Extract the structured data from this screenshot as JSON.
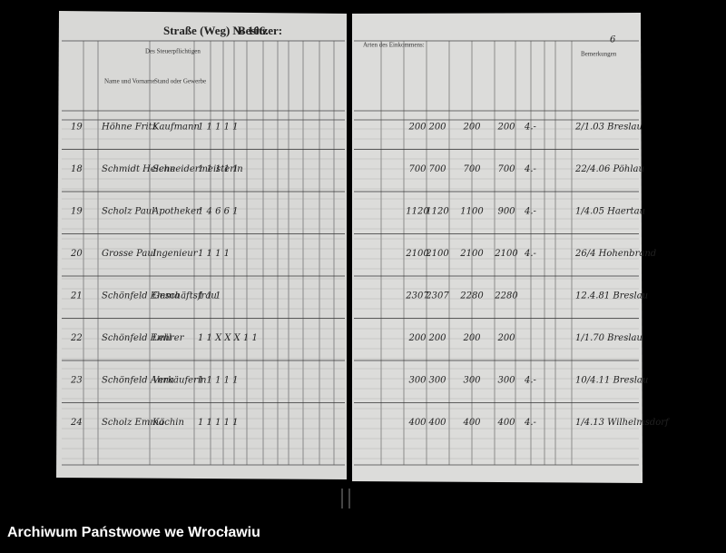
{
  "header": {
    "street": "Straße (Weg) № 106.",
    "owner": "Besitzer:",
    "left_heading": "Des Steuerpflichtigen",
    "col_name": "Name und Vorname",
    "col_stand": "Stand oder Gewerbe",
    "right_heading": "Arten des Einkommens:",
    "remarks": "Bemerkungen"
  },
  "page_number": "6",
  "rows": [
    {
      "no": "19",
      "name": "Höhne Fritz",
      "stand": "Kaufmann",
      "marks": "1   1   1 1 1",
      "amounts": [
        "200",
        "200",
        "200",
        "200"
      ],
      "tax": "4.-",
      "note": "2/1.03 Breslau"
    },
    {
      "no": "18",
      "name": "Schmidt Helene",
      "stand": "Schneidermeisterin",
      "marks": "1   1   1 1 1",
      "amounts": [
        "700",
        "700",
        "700",
        "700"
      ],
      "tax": "4.-",
      "note": "22/4.06 Pöhlau"
    },
    {
      "no": "19",
      "name": "Scholz Paul",
      "stand": "Apotheker",
      "marks": "1  4  6   6 1",
      "amounts": [
        "1120",
        "1120",
        "1100",
        "900"
      ],
      "tax": "4.-",
      "note": "1/4.05 Haertau"
    },
    {
      "no": "20",
      "name": "Grosse Paul",
      "stand": "Ingenieur",
      "marks": "1   1   1 1",
      "amounts": [
        "2100",
        "2100",
        "2100",
        "2100"
      ],
      "tax": "4.-",
      "note": "26/4 Hohenbrand"
    },
    {
      "no": "21",
      "name": "Schönfeld Emma",
      "stand": "Geschäftsfrau",
      "marks": "1   1   1",
      "amounts": [
        "2307",
        "2307",
        "2280",
        "2280"
      ],
      "tax": "",
      "note": "12.4.81 Breslau"
    },
    {
      "no": "22",
      "name": "Schönfeld Emil",
      "stand": "Lehrer",
      "marks": "1  1  X X X 1 1",
      "amounts": [
        "200",
        "200",
        "200",
        "200"
      ],
      "tax": "",
      "note": "1/1.70 Breslau"
    },
    {
      "no": "23",
      "name": "Schönfeld Anna",
      "stand": "Verkäuferin",
      "marks": "1   1   1 1 1",
      "amounts": [
        "300",
        "300",
        "300",
        "300"
      ],
      "tax": "4.-",
      "note": "10/4.11 Breslau"
    },
    {
      "no": "24",
      "name": "Scholz Emma",
      "stand": "Köchin",
      "marks": "1   1   1 1 1",
      "amounts": [
        "400",
        "400",
        "400",
        "400"
      ],
      "tax": "4.-",
      "note": "1/4.13 Wilhelmsdorf"
    }
  ],
  "caption": "Archiwum Państwowe we Wrocławiu"
}
